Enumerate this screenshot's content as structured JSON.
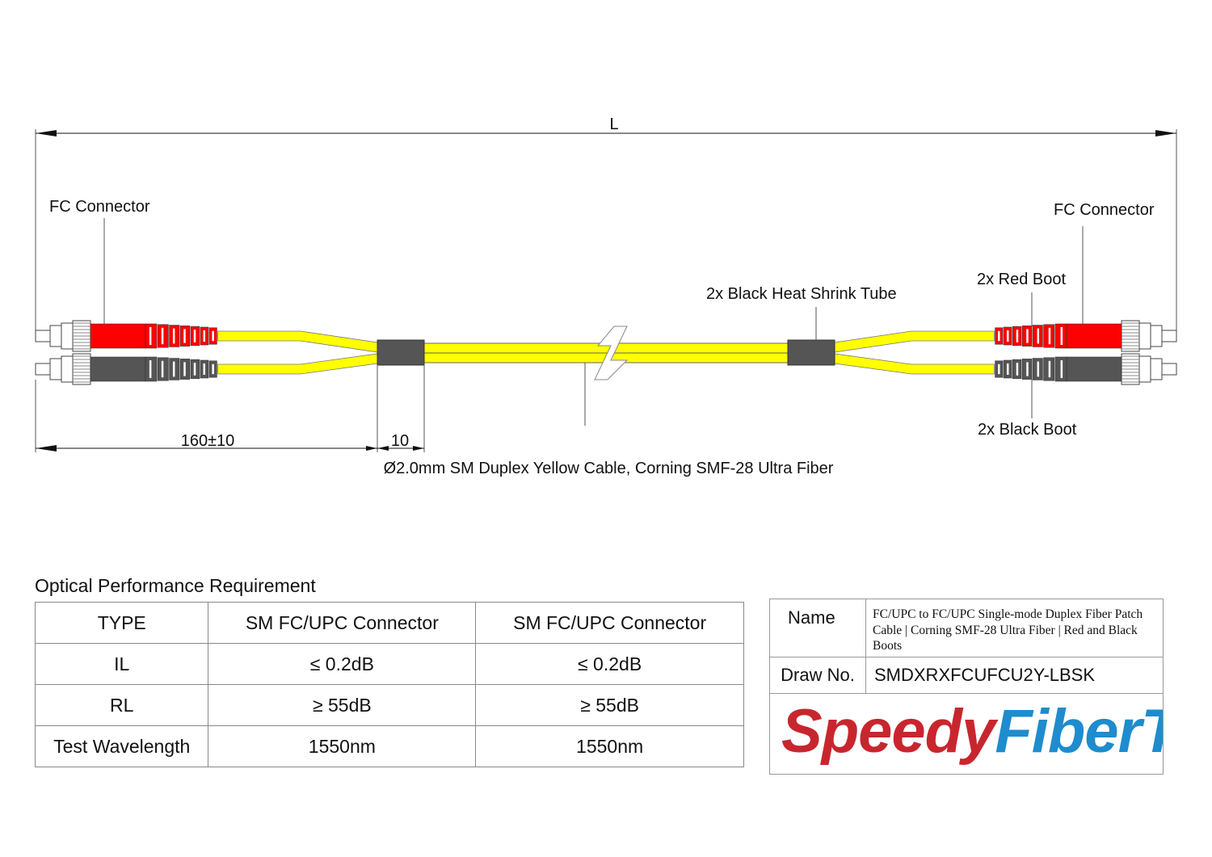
{
  "drawing": {
    "length_label": "L",
    "left_connector_label": "FC Connector",
    "right_connector_label": "FC Connector",
    "red_boot_label": "2x Red Boot",
    "black_boot_label": "2x Black Boot",
    "heat_shrink_label": "2x Black Heat Shrink Tube",
    "breakout_dim": "160±10",
    "tube_dim": "10",
    "cable_label": "Ø2.0mm SM Duplex Yellow Cable, Corning SMF-28 Ultra Fiber",
    "colors": {
      "cable": "#ffff00",
      "red_boot": "#ff0000",
      "black_boot": "#555555",
      "heat_shrink": "#555555"
    }
  },
  "performance": {
    "title": "Optical Performance Requirement",
    "rows": [
      [
        "TYPE",
        "SM FC/UPC Connector",
        "SM FC/UPC Connector"
      ],
      [
        "IL",
        "≤ 0.2dB",
        "≤ 0.2dB"
      ],
      [
        "RL",
        "≥ 55dB",
        "≥ 55dB"
      ],
      [
        "Test Wavelength",
        "1550nm",
        "1550nm"
      ]
    ]
  },
  "info": {
    "name_label": "Name",
    "name_value": "FC/UPC to FC/UPC Single-mode Duplex Fiber Patch Cable | Corning SMF-28 Ultra Fiber | Red and Black Boots",
    "draw_no_label": "Draw No.",
    "draw_no_value": "SMDXRXFCUFCU2Y-LBSK",
    "logo": {
      "part1": "Speedy",
      "part2": "FiberTX",
      "color1": "#c8262e",
      "color2": "#1e8ccd"
    }
  }
}
